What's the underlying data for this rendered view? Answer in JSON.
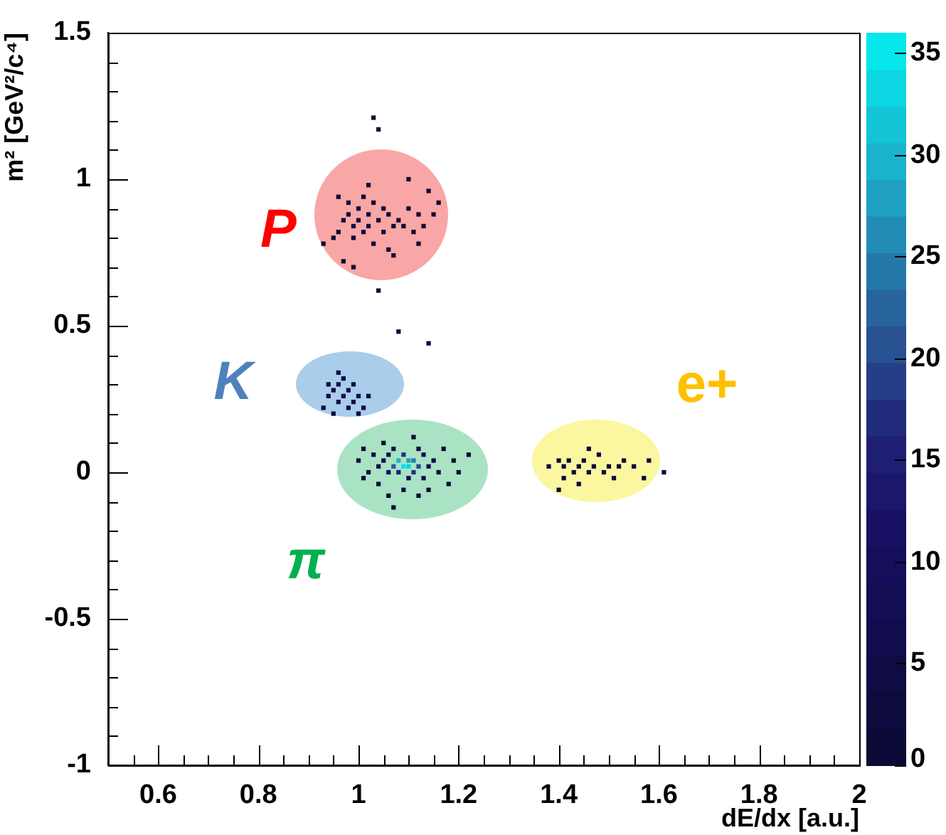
{
  "chart_data": {
    "type": "scatter",
    "xlabel": "dE/dx [a.u.]",
    "ylabel": "m² [GeV²/c⁴]",
    "marker": "square",
    "xlim": [
      0.5,
      2
    ],
    "xticks": [
      {
        "value": 0.55,
        "label": null
      },
      0.6,
      {
        "value": 0.65,
        "label": null
      },
      {
        "value": 0.7,
        "label": null
      },
      {
        "value": 0.75,
        "label": null
      },
      0.8,
      {
        "value": 0.85,
        "label": null
      },
      {
        "value": 0.9,
        "label": null
      },
      {
        "value": 0.95,
        "label": null
      },
      1,
      {
        "value": 1.05,
        "label": null
      },
      {
        "value": 1.1,
        "label": null
      },
      {
        "value": 1.15,
        "label": null
      },
      1.2,
      {
        "value": 1.25,
        "label": null
      },
      {
        "value": 1.3,
        "label": null
      },
      {
        "value": 1.35,
        "label": null
      },
      1.4,
      {
        "value": 1.45,
        "label": null
      },
      {
        "value": 1.5,
        "label": null
      },
      {
        "value": 1.55,
        "label": null
      },
      1.6,
      {
        "value": 1.65,
        "label": null
      },
      {
        "value": 1.7,
        "label": null
      },
      {
        "value": 1.75,
        "label": null
      },
      1.8,
      {
        "value": 1.85,
        "label": null
      },
      {
        "value": 1.9,
        "label": null
      },
      {
        "value": 1.95,
        "label": null
      },
      2
    ],
    "ylim": [
      -1,
      1.5
    ],
    "yticks": [
      -1,
      {
        "value": -0.9,
        "label": null
      },
      {
        "value": -0.8,
        "label": null
      },
      {
        "value": -0.7,
        "label": null
      },
      {
        "value": -0.6,
        "label": null
      },
      -0.5,
      {
        "value": -0.4,
        "label": null
      },
      {
        "value": -0.3,
        "label": null
      },
      {
        "value": -0.2,
        "label": null
      },
      {
        "value": -0.1,
        "label": null
      },
      0,
      {
        "value": 0.1,
        "label": null
      },
      {
        "value": 0.2,
        "label": null
      },
      {
        "value": 0.3,
        "label": null
      },
      {
        "value": 0.4,
        "label": null
      },
      0.5,
      {
        "value": 0.6,
        "label": null
      },
      {
        "value": 0.7,
        "label": null
      },
      {
        "value": 0.8,
        "label": null
      },
      {
        "value": 0.9,
        "label": null
      },
      1,
      {
        "value": 1.1,
        "label": null
      },
      {
        "value": 1.2,
        "label": null
      },
      {
        "value": 1.3,
        "label": null
      },
      {
        "value": 1.4,
        "label": null
      },
      1.5
    ],
    "clim": [
      0,
      36
    ],
    "cticks": [
      0,
      5,
      10,
      15,
      20,
      25,
      30,
      35
    ],
    "x": [
      0.97,
      0.98,
      0.99,
      1.0,
      1.0,
      1.01,
      1.02,
      1.02,
      1.03,
      1.04,
      1.05,
      1.06,
      1.07,
      1.08,
      1.09,
      0.99,
      1.03,
      0.96,
      1.01,
      0.98,
      1.05,
      1.1,
      1.12,
      1.11,
      0.95,
      0.93,
      0.97,
      0.99,
      1.06,
      1.12,
      1.14,
      1.16,
      1.15,
      1.1,
      1.02,
      0.96,
      1.07,
      1.13,
      1.03,
      1.04,
      1.04,
      1.08,
      1.14,
      0.95,
      0.96,
      0.97,
      0.98,
      0.99,
      1.0,
      0.96,
      0.94,
      0.98,
      1.01,
      0.97,
      0.99,
      0.93,
      0.95,
      1.02,
      0.96,
      1.0,
      0.94,
      1.08,
      1.09,
      1.1,
      1.1,
      1.11,
      1.07,
      1.12,
      1.09,
      1.11,
      1.08,
      1.05,
      1.06,
      1.13,
      1.14,
      1.04,
      1.06,
      1.13,
      1.1,
      1.07,
      1.12,
      1.03,
      1.15,
      1.16,
      1.02,
      1.0,
      1.01,
      1.05,
      1.11,
      1.17,
      1.19,
      1.2,
      1.18,
      1.14,
      1.09,
      1.04,
      1.01,
      1.06,
      1.22,
      1.12,
      1.07,
      1.4,
      1.41,
      1.42,
      1.43,
      1.44,
      1.45,
      1.46,
      1.47,
      1.48,
      1.49,
      1.5,
      1.51,
      1.52,
      1.53,
      1.55,
      1.57,
      1.58,
      1.38,
      1.41,
      1.44,
      1.46,
      1.4,
      1.61
    ],
    "values": [
      0.86,
      0.88,
      0.84,
      0.9,
      0.86,
      0.82,
      0.88,
      0.84,
      0.92,
      0.86,
      0.82,
      0.88,
      0.84,
      0.86,
      0.84,
      0.8,
      0.78,
      0.82,
      0.94,
      0.92,
      0.9,
      0.9,
      0.88,
      0.82,
      0.8,
      0.78,
      0.72,
      0.7,
      0.76,
      0.78,
      0.96,
      0.92,
      0.88,
      1.0,
      0.98,
      0.94,
      0.74,
      0.84,
      1.21,
      1.17,
      0.62,
      0.48,
      0.44,
      0.28,
      0.3,
      0.26,
      0.28,
      0.24,
      0.26,
      0.24,
      0.26,
      0.22,
      0.22,
      0.32,
      0.3,
      0.22,
      0.2,
      0.26,
      0.34,
      0.2,
      0.3,
      0.04,
      0.02,
      0.04,
      0.02,
      0.04,
      0.02,
      0.02,
      0.06,
      0.0,
      0.0,
      0.04,
      0.06,
      0.06,
      0.02,
      0.02,
      0.0,
      -0.02,
      -0.02,
      0.08,
      0.08,
      0.06,
      0.04,
      0.0,
      0.0,
      0.04,
      0.08,
      0.1,
      0.12,
      0.08,
      0.04,
      0.0,
      -0.04,
      -0.06,
      -0.06,
      -0.04,
      -0.02,
      -0.08,
      0.06,
      -0.08,
      -0.12,
      0.04,
      0.02,
      0.04,
      0.0,
      0.02,
      0.04,
      0.0,
      0.02,
      0.06,
      0.0,
      0.02,
      -0.02,
      0.02,
      0.04,
      0.02,
      -0.02,
      0.04,
      0.02,
      -0.02,
      -0.04,
      0.08,
      -0.06,
      0.0
    ],
    "cvalues": [
      2,
      3,
      2,
      3,
      3,
      2,
      3,
      2,
      2,
      3,
      2,
      2,
      2,
      2,
      2,
      1,
      1,
      2,
      1,
      2,
      2,
      1,
      1,
      1,
      1,
      1,
      1,
      1,
      1,
      1,
      1,
      1,
      1,
      1,
      1,
      1,
      1,
      1,
      1,
      1,
      1,
      1,
      1,
      6,
      8,
      7,
      9,
      6,
      5,
      6,
      4,
      5,
      3,
      4,
      5,
      3,
      3,
      4,
      3,
      3,
      4,
      30,
      35,
      28,
      33,
      25,
      22,
      20,
      18,
      18,
      15,
      10,
      8,
      9,
      8,
      7,
      9,
      7,
      8,
      6,
      6,
      5,
      5,
      4,
      4,
      2,
      2,
      2,
      1,
      2,
      1,
      1,
      2,
      2,
      3,
      2,
      2,
      1,
      1,
      1,
      1,
      2,
      1,
      2,
      1,
      2,
      2,
      3,
      2,
      1,
      2,
      2,
      1,
      2,
      1,
      1,
      1,
      1,
      1,
      1,
      1,
      1,
      1,
      1
    ],
    "annotations": [
      "P",
      "K",
      "π",
      "e+"
    ]
  }
}
